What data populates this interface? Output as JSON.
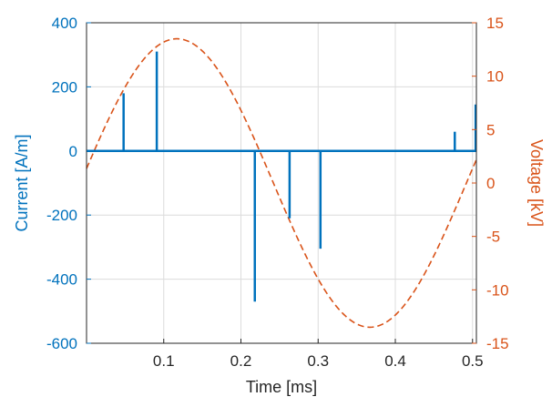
{
  "chart_data": {
    "type": "line",
    "xlabel": "Time [ms]",
    "ylabel_left": "Current [A/m]",
    "ylabel_right": "Voltage [kV]",
    "xlim": [
      0,
      0.505
    ],
    "ylim_left": [
      -600,
      400
    ],
    "ylim_right": [
      -15,
      15
    ],
    "x_ticks": [
      "0.1",
      "0.2",
      "0.3",
      "0.4",
      "0.5"
    ],
    "y_left_ticks": [
      "400",
      "200",
      "0",
      "-200",
      "-400",
      "-600"
    ],
    "y_right_ticks": [
      "15",
      "10",
      "5",
      "0",
      "-5",
      "-10",
      "-15"
    ],
    "grid": true,
    "colors": {
      "current": "#0072BD",
      "voltage": "#D95319",
      "grid": "#dcdcdc",
      "axes": "#262626"
    },
    "series": [
      {
        "axis": "left",
        "style": "solid-impulses",
        "pulses": [
          {
            "x": 0.048,
            "y": 180
          },
          {
            "x": 0.091,
            "y": 310
          },
          {
            "x": 0.218,
            "y": -470
          },
          {
            "x": 0.263,
            "y": -210
          },
          {
            "x": 0.303,
            "y": -305
          },
          {
            "x": 0.477,
            "y": 60
          },
          {
            "x": 0.504,
            "y": 145
          }
        ]
      },
      {
        "axis": "right",
        "style": "dashed",
        "amplitude": 13.5,
        "frequency_khz": 2,
        "phase_offset": 0.1
      }
    ]
  }
}
